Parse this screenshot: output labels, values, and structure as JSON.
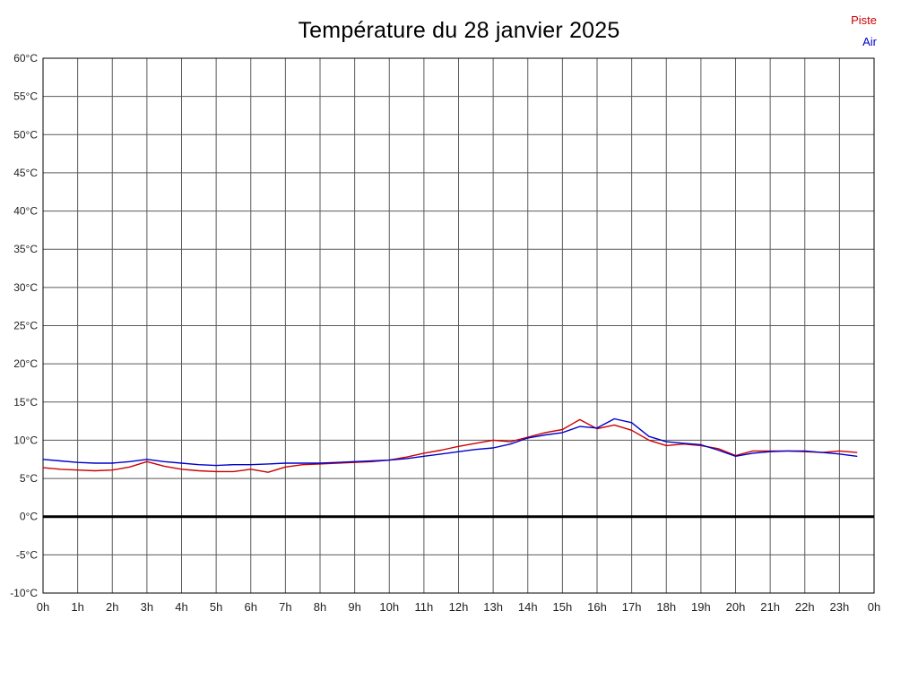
{
  "page": {
    "background": "#ffffff"
  },
  "chart_data": {
    "type": "line",
    "title": "Température du 28 janvier 2025",
    "xlabel": "",
    "ylabel": "",
    "xlim": [
      0,
      24
    ],
    "ylim": [
      -10,
      60
    ],
    "grid": true,
    "grid_color": "#5a5a5a",
    "tick_color": "#222222",
    "border_color": "#000000",
    "legend_position": "top-right",
    "zero_line": {
      "value": 0,
      "color": "#000000",
      "width": 3
    },
    "x_ticks": [
      0,
      1,
      2,
      3,
      4,
      5,
      6,
      7,
      8,
      9,
      10,
      11,
      12,
      13,
      14,
      15,
      16,
      17,
      18,
      19,
      20,
      21,
      22,
      23,
      24
    ],
    "x_tick_labels": [
      "0h",
      "1h",
      "2h",
      "3h",
      "4h",
      "5h",
      "6h",
      "7h",
      "8h",
      "9h",
      "10h",
      "11h",
      "12h",
      "13h",
      "14h",
      "15h",
      "16h",
      "17h",
      "18h",
      "19h",
      "20h",
      "21h",
      "22h",
      "23h",
      "0h"
    ],
    "y_ticks": [
      60,
      55,
      50,
      45,
      40,
      35,
      30,
      25,
      20,
      15,
      10,
      5,
      0,
      -5,
      -10
    ],
    "y_tick_labels": [
      "60°C",
      "55°C",
      "50°C",
      "45°C",
      "40°C",
      "35°C",
      "30°C",
      "25°C",
      "20°C",
      "15°C",
      "10°C",
      "5°C",
      "0°C",
      "-5°C",
      "-10°C"
    ],
    "x": [
      0,
      0.5,
      1,
      1.5,
      2,
      2.5,
      3,
      3.5,
      4,
      4.5,
      5,
      5.5,
      6,
      6.5,
      7,
      7.5,
      8,
      8.5,
      9,
      9.5,
      10,
      10.5,
      11,
      11.5,
      12,
      12.5,
      13,
      13.5,
      14,
      14.5,
      15,
      15.5,
      16,
      16.5,
      17,
      17.5,
      18,
      18.5,
      19,
      19.5,
      20,
      20.5,
      21,
      21.5,
      22,
      22.5,
      23,
      23.5
    ],
    "series": [
      {
        "name": "Piste",
        "color": "#cc0000",
        "values": [
          6.4,
          6.2,
          6.1,
          6.0,
          6.1,
          6.5,
          7.2,
          6.6,
          6.2,
          6.0,
          5.9,
          5.9,
          6.2,
          5.8,
          6.5,
          6.8,
          6.9,
          7.0,
          7.1,
          7.2,
          7.4,
          7.8,
          8.3,
          8.7,
          9.2,
          9.6,
          10.0,
          9.8,
          10.4,
          11.0,
          11.4,
          12.7,
          11.5,
          12.0,
          11.3,
          10.0,
          9.3,
          9.5,
          9.3,
          8.9,
          8.0,
          8.6,
          8.6,
          8.6,
          8.5,
          8.4,
          8.6,
          8.4
        ]
      },
      {
        "name": "Air",
        "color": "#0000cc",
        "values": [
          7.5,
          7.3,
          7.1,
          7.0,
          7.0,
          7.2,
          7.5,
          7.2,
          7.0,
          6.8,
          6.7,
          6.8,
          6.8,
          6.9,
          7.0,
          7.0,
          7.0,
          7.1,
          7.2,
          7.3,
          7.4,
          7.6,
          7.9,
          8.2,
          8.5,
          8.8,
          9.0,
          9.5,
          10.3,
          10.7,
          11.0,
          11.8,
          11.6,
          12.8,
          12.3,
          10.5,
          9.8,
          9.6,
          9.4,
          8.7,
          7.9,
          8.3,
          8.5,
          8.6,
          8.6,
          8.4,
          8.2,
          7.9
        ]
      }
    ]
  }
}
